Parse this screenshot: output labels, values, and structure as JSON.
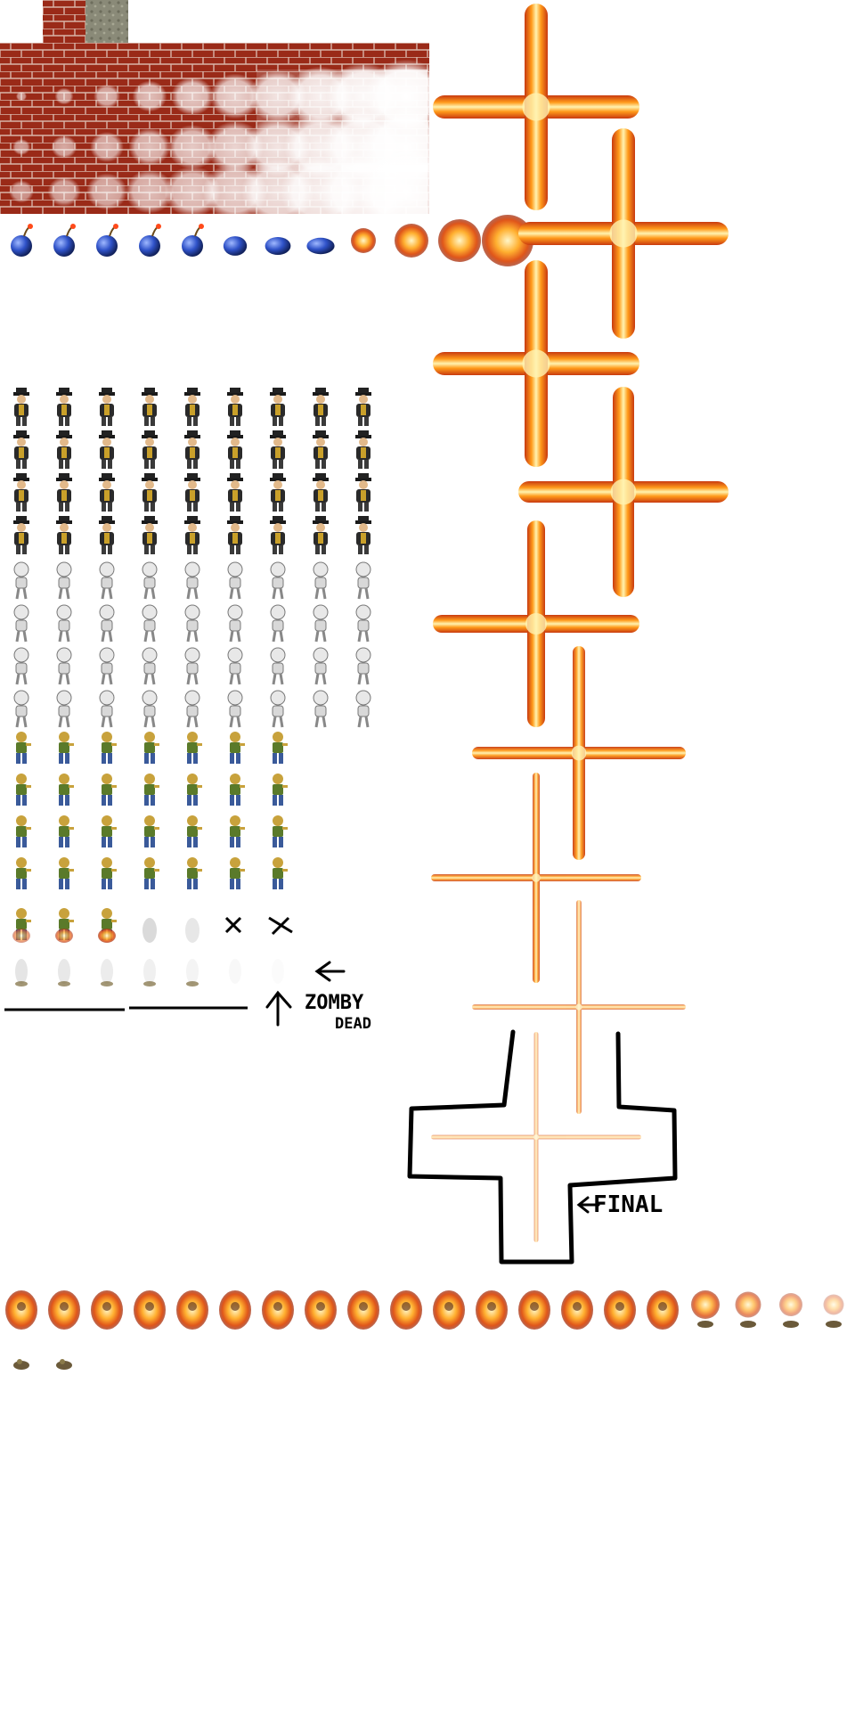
{
  "sheet": {
    "background": "#ffffff",
    "colors": {
      "brick": "#9a2a18",
      "mortar": "#d9b4a8",
      "rock": "#8a8a78",
      "bomb": "#2f52c8",
      "fire_core": "#fff3b0",
      "fire_mid": "#ff9a1a",
      "fire_edge": "#c83a10",
      "ink": "#000000"
    },
    "sections": {
      "brick_fade": {
        "name": "brick-wall-destruction-frames",
        "rows": 3,
        "frames": 10
      },
      "bomb": {
        "name": "bomb-fuse-and-blast-frames",
        "frames": 12
      },
      "cross_blast": {
        "name": "cross-explosion-frames",
        "frames": 10
      },
      "gangster": {
        "name": "gangster-walk-frames",
        "rows": 4,
        "frames": 9
      },
      "skeleton": {
        "name": "skeleton-walk-frames",
        "rows": 4,
        "frames": 9
      },
      "zombie": {
        "name": "zombie-walk-frames",
        "rows": 4,
        "frames": 7
      },
      "zombie_death": {
        "name": "zombie-death-frames",
        "frames": 7
      },
      "fire_death": {
        "name": "burning-death-frames",
        "frames": 22
      }
    },
    "annotations": {
      "zombie_dead": [
        "ZOMBY",
        "DEAD"
      ],
      "final": "FINAL"
    },
    "icons": {
      "arrow_left": "arrow-left-icon",
      "arrow_up": "arrow-up-icon",
      "arrow_final": "arrow-left-icon",
      "cross_mark": "x-mark-icon"
    }
  }
}
